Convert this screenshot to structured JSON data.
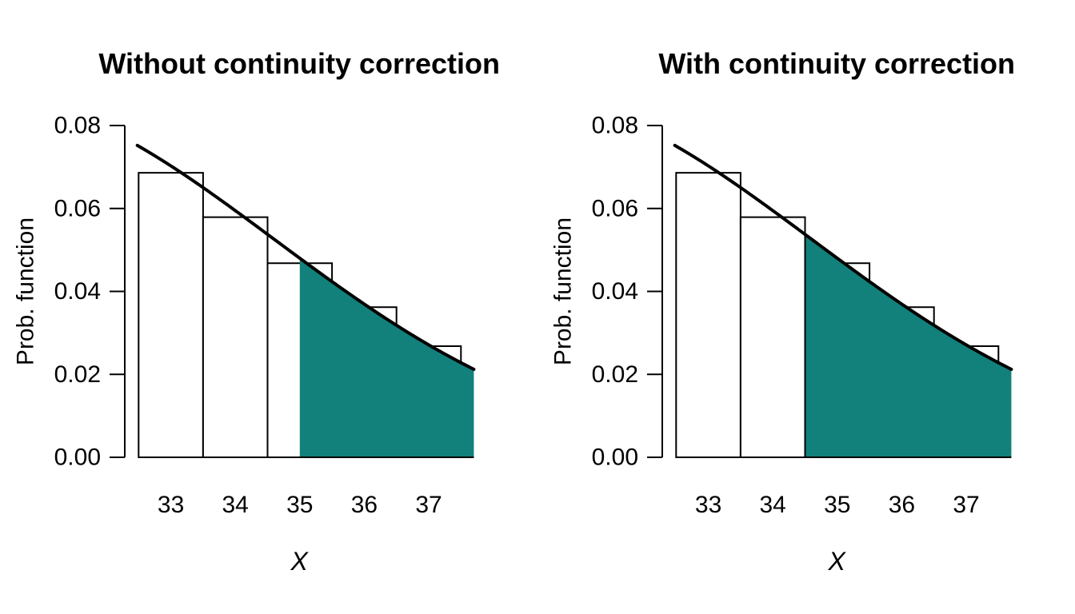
{
  "figure": {
    "background": "#ffffff",
    "panel_count": 2
  },
  "chart_data": [
    {
      "type": "bar",
      "title": "Without continuity correction",
      "xlabel": "X",
      "ylabel": "Prob. function",
      "categories": [
        33,
        34,
        35,
        36,
        37
      ],
      "values": [
        0.0686,
        0.0579,
        0.0468,
        0.0362,
        0.0268
      ],
      "bar_width": 1,
      "bar_fill": "#ffffff",
      "bar_stroke": "#000000",
      "curve": {
        "type": "normal-density",
        "mean": 30,
        "variance": 21,
        "from": 32.48,
        "to": 37.7,
        "color": "#000000"
      },
      "shade": {
        "from": 35,
        "to": 37.7,
        "color": "#12807B",
        "left_edge_line": false
      },
      "xticks": [
        "33",
        "34",
        "35",
        "36",
        "37"
      ],
      "yticks": [
        "0.00",
        "0.02",
        "0.04",
        "0.06",
        "0.08"
      ],
      "ytick_values": [
        0,
        0.02,
        0.04,
        0.06,
        0.08
      ],
      "xlim": [
        32.28,
        37.7
      ],
      "ylim": [
        0,
        0.08
      ],
      "grid": false,
      "legend": "none"
    },
    {
      "type": "bar",
      "title": "With continuity correction",
      "xlabel": "X",
      "ylabel": "Prob. function",
      "categories": [
        33,
        34,
        35,
        36,
        37
      ],
      "values": [
        0.0686,
        0.0579,
        0.0468,
        0.0362,
        0.0268
      ],
      "bar_width": 1,
      "bar_fill": "#ffffff",
      "bar_stroke": "#000000",
      "curve": {
        "type": "normal-density",
        "mean": 30,
        "variance": 21,
        "from": 32.48,
        "to": 37.7,
        "color": "#000000"
      },
      "shade": {
        "from": 34.5,
        "to": 37.7,
        "color": "#12807B",
        "left_edge_line": true
      },
      "xticks": [
        "33",
        "34",
        "35",
        "36",
        "37"
      ],
      "yticks": [
        "0.00",
        "0.02",
        "0.04",
        "0.06",
        "0.08"
      ],
      "ytick_values": [
        0,
        0.02,
        0.04,
        0.06,
        0.08
      ],
      "xlim": [
        32.28,
        37.7
      ],
      "ylim": [
        0,
        0.08
      ],
      "grid": false,
      "legend": "none"
    }
  ]
}
